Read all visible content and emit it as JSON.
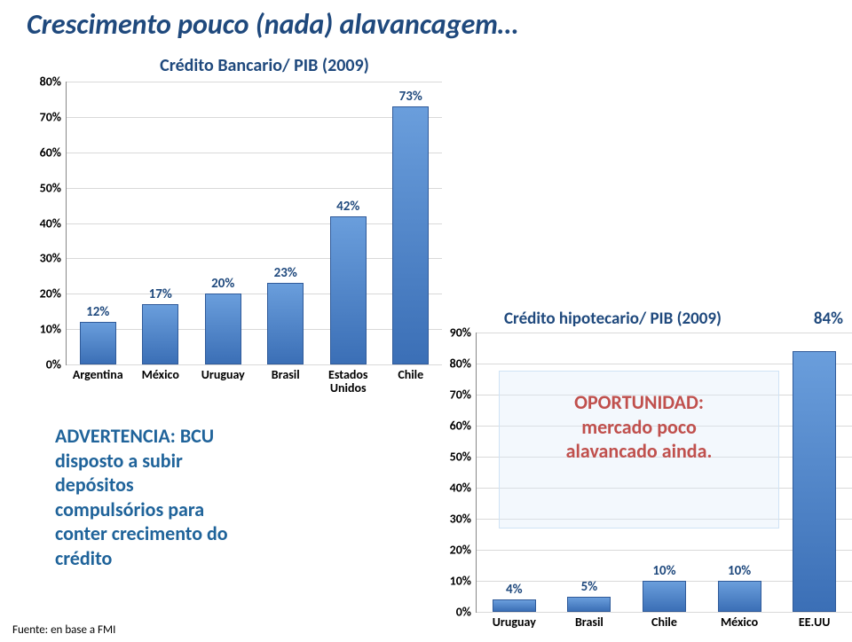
{
  "title": "Crescimento pouco (nada) alavancagem…",
  "chart1": {
    "type": "bar",
    "title": "Crédito Bancario/ PIB (2009)",
    "title_fontsize": 20,
    "title_color": "#1f497d",
    "categories": [
      "Argentina",
      "México",
      "Uruguay",
      "Brasil",
      "Estados\nUnidos",
      "Chile"
    ],
    "values": [
      12,
      17,
      20,
      23,
      42,
      73
    ],
    "value_labels": [
      "12%",
      "17%",
      "20%",
      "23%",
      "42%",
      "73%"
    ],
    "ylim": [
      0,
      80
    ],
    "ytick_step": 10,
    "ytick_labels": [
      "0%",
      "10%",
      "20%",
      "30%",
      "40%",
      "50%",
      "60%",
      "70%",
      "80%"
    ],
    "bar_color_top": "#6a9edc",
    "bar_color_bottom": "#3b6fb6",
    "bar_border": "#2f5a99",
    "grid_color": "#d9d9d9",
    "background_color": "#ffffff",
    "bar_width": 0.58
  },
  "chart2": {
    "type": "bar",
    "title": "Crédito hipotecario/ PIB (2009)",
    "title_fontsize": 19,
    "title_color": "#1f497d",
    "categories": [
      "Uruguay",
      "Brasil",
      "Chile",
      "México",
      "EE.UU"
    ],
    "values": [
      4,
      5,
      10,
      10,
      84
    ],
    "value_labels": [
      "4%",
      "5%",
      "10%",
      "10%",
      "84%"
    ],
    "ylim": [
      0,
      90
    ],
    "ytick_step": 10,
    "ytick_labels": [
      "0%",
      "10%",
      "20%",
      "30%",
      "40%",
      "50%",
      "60%",
      "70%",
      "80%",
      "90%"
    ],
    "bar_color_top": "#6a9edc",
    "bar_color_bottom": "#3b6fb6",
    "bar_border": "#2f5a99",
    "grid_color": "#d9d9d9",
    "background_color": "#ffffff",
    "bar_width": 0.58
  },
  "advert": {
    "highlight1": "ADVERTENCIA:",
    "highlight2": "BCU",
    "line2": "disposto a subir",
    "line3": "depósitos",
    "line4": "compulsórios para",
    "line5": "conter crecimento do",
    "line6": "crédito",
    "highlight_color": "#1f639a",
    "body_color": "#1f639a"
  },
  "opportunity": {
    "highlight": "OPORTUNIDAD:",
    "line2": "mercado poco",
    "line3": "alavancado  ainda.",
    "highlight_color": "#c0504d",
    "body_color": "#c0504d",
    "box_bg": "rgba(220,235,250,0.35)",
    "box_border": "#cfe3f5"
  },
  "fuente": "Fuente: en base a FMI"
}
